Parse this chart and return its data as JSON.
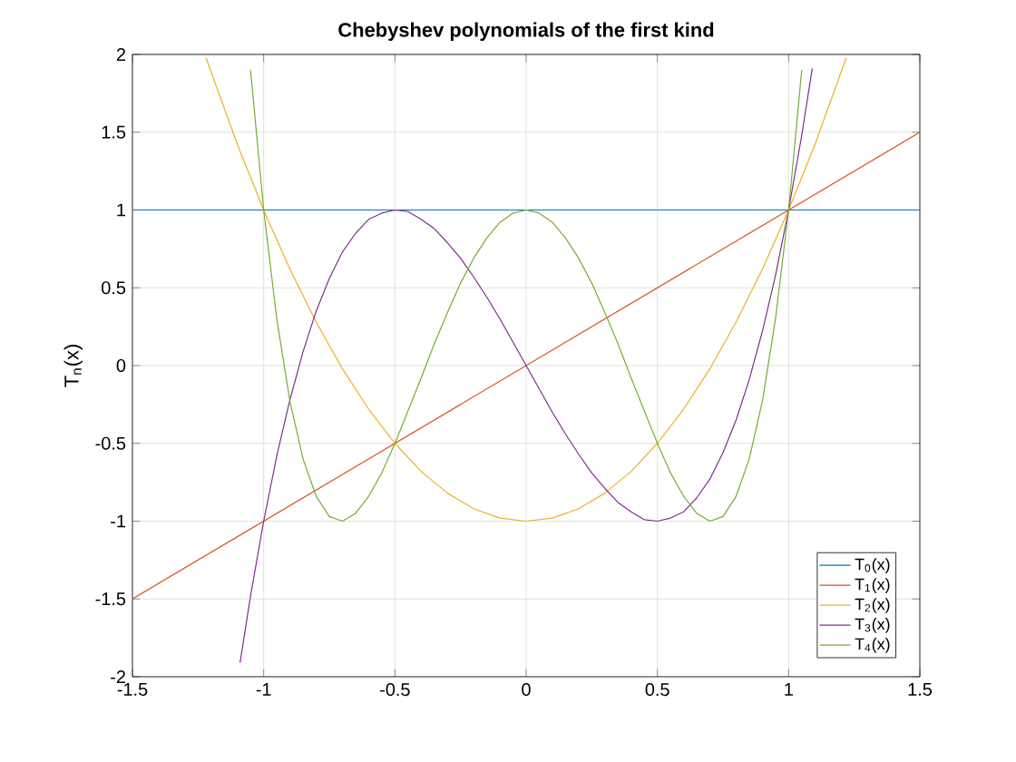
{
  "chart_data": {
    "type": "line",
    "title": "Chebyshev polynomials of the first kind",
    "ylabel": "T$_{n}$(x)",
    "xlim": [
      -1.5,
      1.5
    ],
    "ylim": [
      -2,
      2
    ],
    "xticks": [
      -1.5,
      -1,
      -0.5,
      0,
      0.5,
      1,
      1.5
    ],
    "yticks": [
      -2,
      -1.5,
      -1,
      -0.5,
      0,
      0.5,
      1,
      1.5,
      2
    ],
    "grid": true,
    "legend": "bottom right",
    "series": [
      {
        "name": "T$_{0}$(x)",
        "color": "#0072bd",
        "x": [
          -1.5,
          1.5
        ],
        "values": [
          1,
          1
        ]
      },
      {
        "name": "T$_{1}$(x)",
        "color": "#d95319",
        "x": [
          -1.5,
          1.5
        ],
        "values": [
          -1.5,
          1.5
        ]
      },
      {
        "name": "T$_{2}$(x)",
        "color": "#edb120",
        "x": [
          -1.22,
          -1.1,
          -1.0,
          -0.9,
          -0.8,
          -0.7,
          -0.6,
          -0.5,
          -0.4,
          -0.3,
          -0.2,
          -0.1,
          0,
          0.1,
          0.2,
          0.3,
          0.4,
          0.5,
          0.6,
          0.7,
          0.8,
          0.9,
          1.0,
          1.1,
          1.22
        ],
        "values": [
          1.98,
          1.42,
          1,
          0.62,
          0.28,
          -0.02,
          -0.28,
          -0.5,
          -0.68,
          -0.82,
          -0.92,
          -0.98,
          -1,
          -0.98,
          -0.92,
          -0.82,
          -0.68,
          -0.5,
          -0.28,
          -0.02,
          0.28,
          0.62,
          1,
          1.42,
          1.98
        ]
      },
      {
        "name": "T$_{3}$(x)",
        "color": "#7e2f8e",
        "x": [
          -1.09,
          -1.05,
          -1.0,
          -0.95,
          -0.9,
          -0.85,
          -0.8,
          -0.75,
          -0.7,
          -0.65,
          -0.6,
          -0.55,
          -0.5,
          -0.45,
          -0.4,
          -0.35,
          -0.3,
          -0.25,
          -0.2,
          -0.15,
          -0.1,
          -0.05,
          0,
          0.05,
          0.1,
          0.15,
          0.2,
          0.25,
          0.3,
          0.35,
          0.4,
          0.45,
          0.5,
          0.55,
          0.6,
          0.65,
          0.7,
          0.75,
          0.8,
          0.85,
          0.9,
          0.95,
          1.0,
          1.05,
          1.09
        ],
        "values": [
          -1.91,
          -1.48,
          -1,
          -0.58,
          -0.22,
          0.09,
          0.35,
          0.56,
          0.73,
          0.85,
          0.94,
          0.98,
          1,
          0.99,
          0.94,
          0.88,
          0.79,
          0.69,
          0.57,
          0.44,
          0.3,
          0.15,
          0,
          -0.15,
          -0.3,
          -0.44,
          -0.57,
          -0.69,
          -0.79,
          -0.88,
          -0.94,
          -0.99,
          -1,
          -0.98,
          -0.94,
          -0.85,
          -0.73,
          -0.56,
          -0.35,
          -0.09,
          0.22,
          0.58,
          1,
          1.48,
          1.91
        ]
      },
      {
        "name": "T$_{4}$(x)",
        "color": "#77ac30",
        "x": [
          -1.05,
          -1.0,
          -0.95,
          -0.9,
          -0.85,
          -0.8,
          -0.75,
          -0.7,
          -0.65,
          -0.6,
          -0.55,
          -0.5,
          -0.45,
          -0.4,
          -0.35,
          -0.3,
          -0.25,
          -0.2,
          -0.15,
          -0.1,
          -0.05,
          0,
          0.05,
          0.1,
          0.15,
          0.2,
          0.25,
          0.3,
          0.35,
          0.4,
          0.45,
          0.5,
          0.55,
          0.6,
          0.65,
          0.7,
          0.75,
          0.8,
          0.85,
          0.9,
          0.95,
          1.0,
          1.05
        ],
        "values": [
          1.9,
          1,
          0.3,
          -0.23,
          -0.6,
          -0.84,
          -0.97,
          -1,
          -0.95,
          -0.84,
          -0.69,
          -0.5,
          -0.29,
          -0.08,
          0.14,
          0.34,
          0.53,
          0.69,
          0.82,
          0.92,
          0.98,
          1,
          0.98,
          0.92,
          0.82,
          0.69,
          0.53,
          0.34,
          0.14,
          -0.08,
          -0.29,
          -0.5,
          -0.69,
          -0.84,
          -0.95,
          -1,
          -0.97,
          -0.84,
          -0.6,
          -0.23,
          0.3,
          1,
          1.9
        ]
      }
    ]
  }
}
